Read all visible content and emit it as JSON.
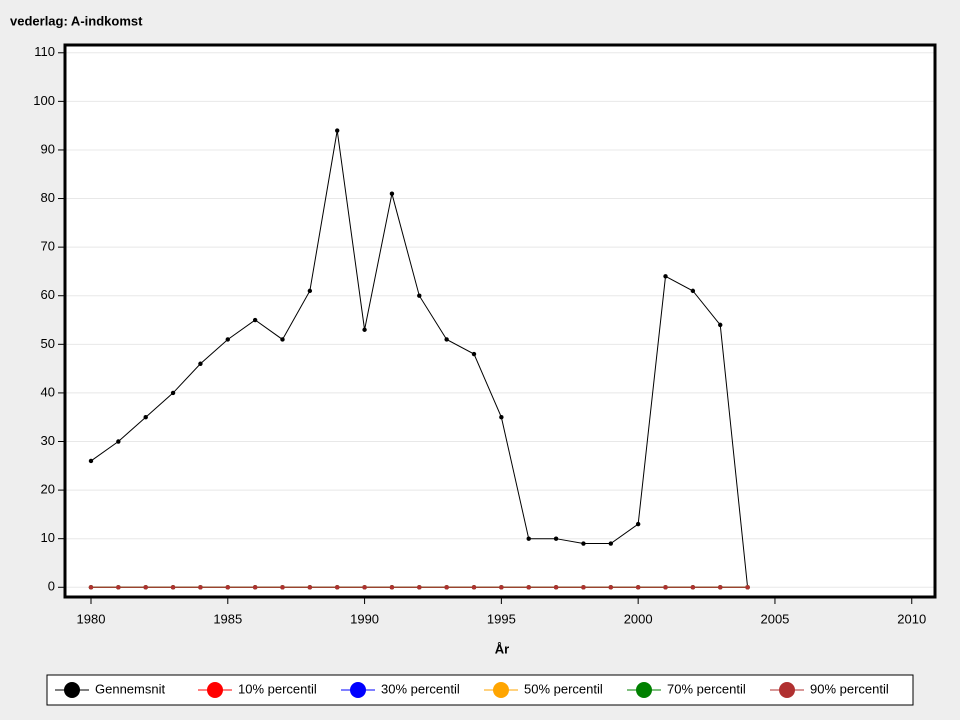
{
  "chart_data": {
    "type": "line",
    "title": "vederlag: A-indkomst",
    "x_label": "År",
    "x": [
      1980,
      1981,
      1982,
      1983,
      1984,
      1985,
      1986,
      1987,
      1988,
      1989,
      1990,
      1991,
      1992,
      1993,
      1994,
      1995,
      1996,
      1997,
      1998,
      1999,
      2000,
      2001,
      2002,
      2003,
      2004
    ],
    "series": [
      {
        "name": "Gennemsnit",
        "color": "#000000",
        "values": [
          26,
          30,
          35,
          40,
          46,
          51,
          55,
          51,
          61,
          94,
          53,
          81,
          60,
          51,
          48,
          35,
          10,
          10,
          9,
          9,
          13,
          64,
          61,
          54,
          0
        ]
      },
      {
        "name": "10% percentil",
        "color": "#ff0000",
        "values": [
          0,
          0,
          0,
          0,
          0,
          0,
          0,
          0,
          0,
          0,
          0,
          0,
          0,
          0,
          0,
          0,
          0,
          0,
          0,
          0,
          0,
          0,
          0,
          0,
          0
        ]
      },
      {
        "name": "30% percentil",
        "color": "#0000ff",
        "values": [
          0,
          0,
          0,
          0,
          0,
          0,
          0,
          0,
          0,
          0,
          0,
          0,
          0,
          0,
          0,
          0,
          0,
          0,
          0,
          0,
          0,
          0,
          0,
          0,
          0
        ]
      },
      {
        "name": "50% percentil",
        "color": "#ffa500",
        "values": [
          0,
          0,
          0,
          0,
          0,
          0,
          0,
          0,
          0,
          0,
          0,
          0,
          0,
          0,
          0,
          0,
          0,
          0,
          0,
          0,
          0,
          0,
          0,
          0,
          0
        ]
      },
      {
        "name": "70% percentil",
        "color": "#008000",
        "values": [
          0,
          0,
          0,
          0,
          0,
          0,
          0,
          0,
          0,
          0,
          0,
          0,
          0,
          0,
          0,
          0,
          0,
          0,
          0,
          0,
          0,
          0,
          0,
          0,
          0
        ]
      },
      {
        "name": "90% percentil",
        "color": "#b03030",
        "values": [
          0,
          0,
          0,
          0,
          0,
          0,
          0,
          0,
          0,
          0,
          0,
          0,
          0,
          0,
          0,
          0,
          0,
          0,
          0,
          0,
          0,
          0,
          0,
          0,
          0
        ]
      }
    ],
    "xlim": [
      1979.05,
      2010.85
    ],
    "xticks": [
      1980,
      1985,
      1990,
      1995,
      2000,
      2005,
      2010
    ],
    "ylim": [
      -2,
      111.6
    ],
    "yticks": [
      0,
      10,
      20,
      30,
      40,
      50,
      60,
      70,
      80,
      90,
      100,
      110
    ],
    "grid": true,
    "legend": "bottom"
  }
}
